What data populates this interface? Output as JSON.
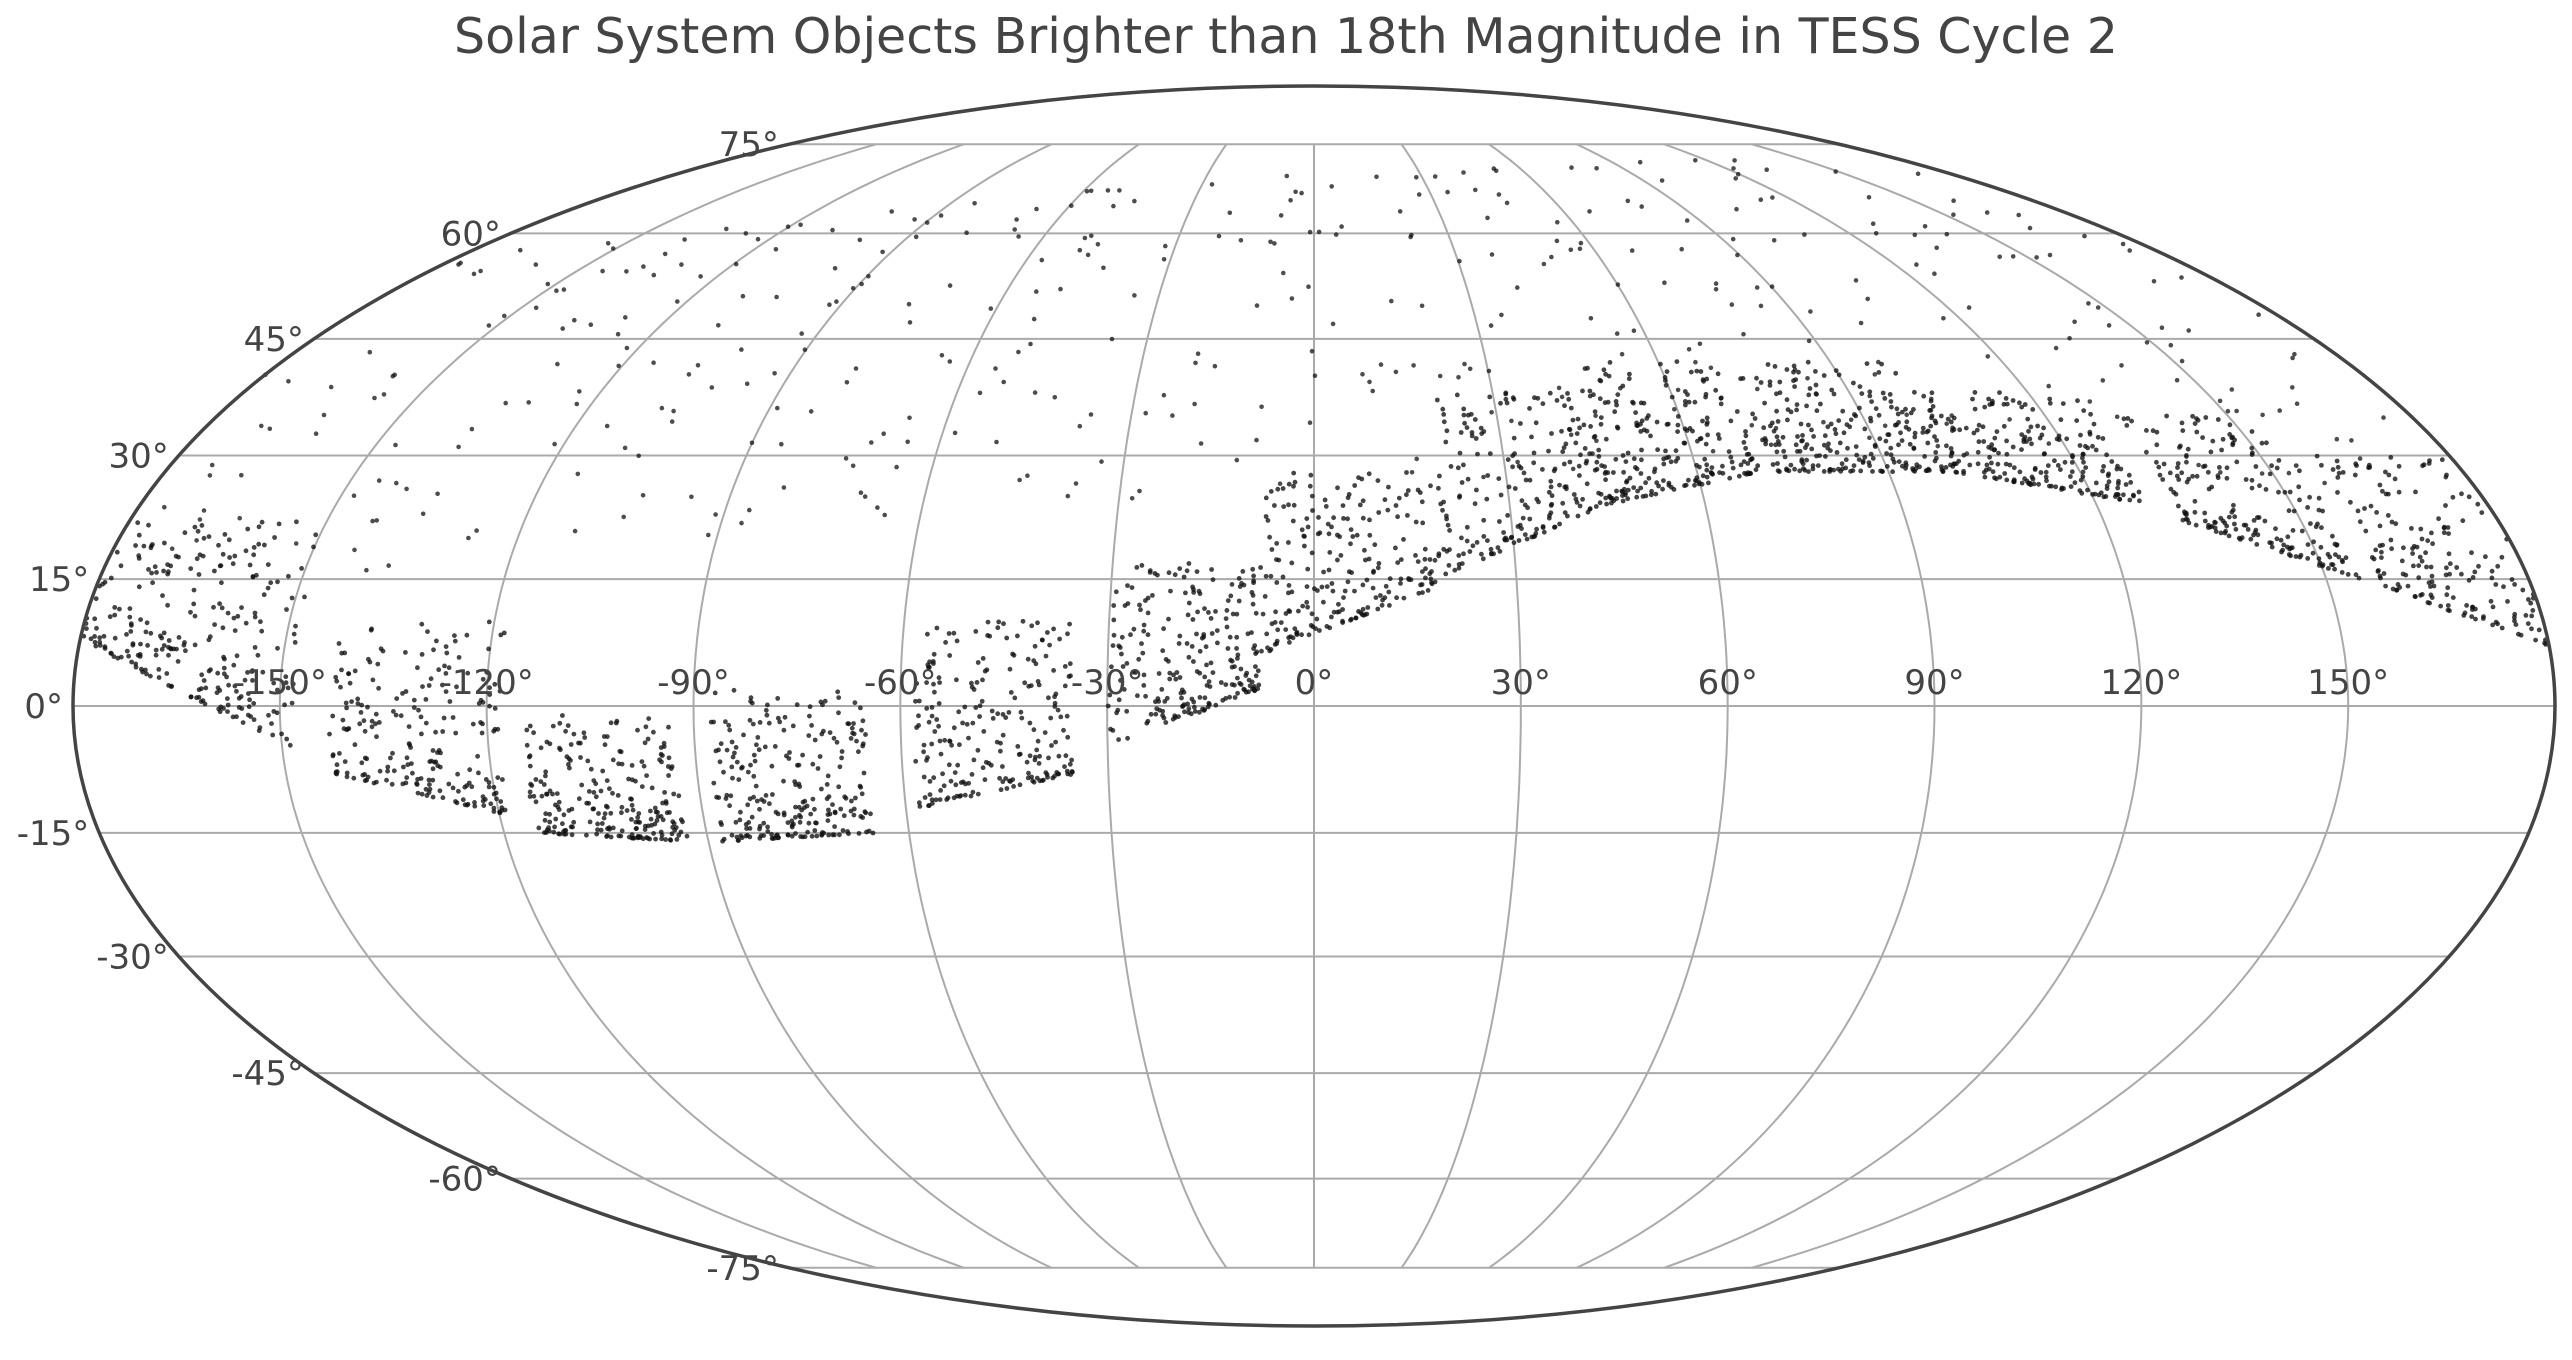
{
  "chart_data": {
    "type": "scatter",
    "projection": "mollweide",
    "title": "Solar System Objects Brighter than 18th Magnitude in TESS Cycle 2",
    "xlabel": "",
    "ylabel": "",
    "grid": true,
    "xlim": [
      -180,
      180
    ],
    "ylim": [
      -90,
      90
    ],
    "x_ticks": [
      -150,
      -120,
      -90,
      -60,
      -30,
      0,
      30,
      60,
      90,
      120,
      150
    ],
    "y_ticks": [
      -75,
      -60,
      -45,
      -30,
      -15,
      0,
      15,
      30,
      45,
      60,
      75
    ],
    "x_tick_labels": [
      "-150°",
      "-120°",
      "-90°",
      "-60°",
      "-30°",
      "0°",
      "30°",
      "60°",
      "90°",
      "120°",
      "150°"
    ],
    "y_tick_labels": [
      "-75°",
      "-60°",
      "-45°",
      "-30°",
      "-15°",
      "0°",
      "15°",
      "30°",
      "45°",
      "60°",
      "75°"
    ],
    "marker_color": "#111111",
    "grid_color": "#aaaaaa",
    "frame_color": "#444444",
    "series": [
      {
        "note_regions": "dense dots bounded below by the ecliptic-like boundary; sparse scattered dots above",
        "dense_regions": [
          {
            "lon": [
              -180,
              -148
            ],
            "lat_lower_at_start": 8,
            "lat_lower_at_end": -5,
            "lat_upper": 22,
            "count": 260
          },
          {
            "lon": [
              -143,
              -118
            ],
            "lat_lower_at_start": -8,
            "lat_lower_at_end": -13,
            "lat_upper": 10,
            "count": 220
          },
          {
            "lon": [
              -115,
              -93
            ],
            "lat_lower_at_start": -15,
            "lat_lower_at_end": -16,
            "lat_upper": -1,
            "count": 230
          },
          {
            "lon": [
              -88,
              -65
            ],
            "lat_lower_at_start": -16,
            "lat_lower_at_end": -15,
            "lat_upper": 2,
            "count": 240
          },
          {
            "lon": [
              -58,
              -35
            ],
            "lat_lower_at_start": -12,
            "lat_lower_at_end": -8,
            "lat_upper": 10,
            "count": 230
          },
          {
            "lon": [
              -30,
              -8
            ],
            "lat_lower_at_start": -5,
            "lat_lower_at_end": 2,
            "lat_upper": 17,
            "count": 230
          },
          {
            "lon": [
              -8,
              18
            ],
            "lat_lower_at_start": 6,
            "lat_lower_at_end": 14,
            "lat_upper": 28,
            "count": 220
          },
          {
            "lon": [
              18,
              45
            ],
            "lat_lower_at_start": 15,
            "lat_lower_at_end": 24,
            "lat_upper": 38,
            "count": 210
          },
          {
            "lon": [
              45,
              70
            ],
            "lat_lower_at_start": 24,
            "lat_lower_at_end": 28,
            "lat_upper": 42,
            "count": 220
          },
          {
            "lon": [
              72,
              100
            ],
            "lat_lower_at_start": 28,
            "lat_lower_at_end": 28,
            "lat_upper": 42,
            "count": 230
          },
          {
            "lon": [
              100,
              128
            ],
            "lat_lower_at_start": 28,
            "lat_lower_at_end": 24,
            "lat_upper": 38,
            "count": 220
          },
          {
            "lon": [
              132,
              155
            ],
            "lat_lower_at_start": 22,
            "lat_lower_at_end": 15,
            "lat_upper": 35,
            "count": 200
          },
          {
            "lon": [
              158,
              180
            ],
            "lat_lower_at_start": 14,
            "lat_lower_at_end": 7,
            "lat_upper": 30,
            "count": 180
          }
        ],
        "sparse_count": 420
      }
    ]
  }
}
